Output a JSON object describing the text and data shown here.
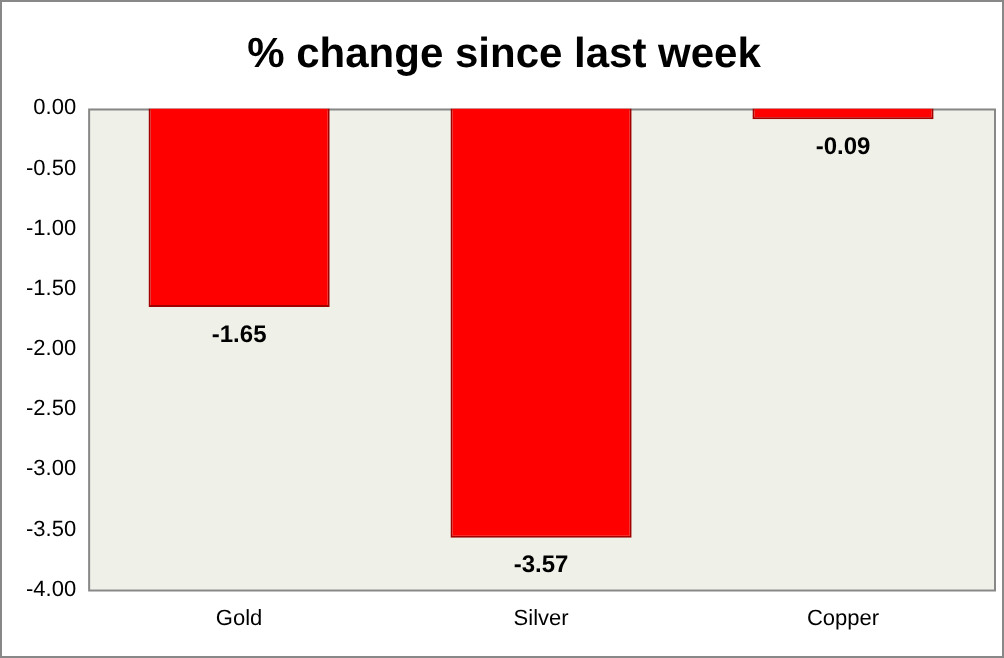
{
  "chart_data": {
    "type": "bar",
    "title": "% change since last week",
    "categories": [
      "Gold",
      "Silver",
      "Copper"
    ],
    "values": [
      -1.65,
      -3.57,
      -0.09
    ],
    "color": "#ff0000",
    "ylim": [
      -4,
      0
    ],
    "yticks": [
      {
        "value": 0,
        "label": "0.00"
      },
      {
        "value": -0.5,
        "label": "-0.50"
      },
      {
        "value": -1,
        "label": "-1.00"
      },
      {
        "value": -1.5,
        "label": "-1.50"
      },
      {
        "value": -2,
        "label": "-2.00"
      },
      {
        "value": -2.5,
        "label": "-2.50"
      },
      {
        "value": -3,
        "label": "-3.00"
      },
      {
        "value": -3.5,
        "label": "-3.50"
      },
      {
        "value": -4,
        "label": "-4.00"
      }
    ],
    "data_labels": true,
    "grid": false,
    "legend": false
  }
}
